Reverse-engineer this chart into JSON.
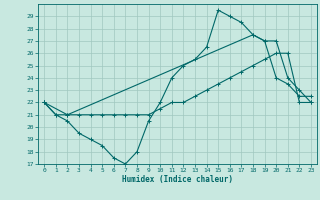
{
  "xlabel": "Humidex (Indice chaleur)",
  "bg_color": "#c8e8e0",
  "grid_color": "#a0c8c0",
  "line_color": "#006868",
  "xlim": [
    -0.5,
    23.5
  ],
  "ylim": [
    17,
    30
  ],
  "yticks": [
    17,
    18,
    19,
    20,
    21,
    22,
    23,
    24,
    25,
    26,
    27,
    28,
    29
  ],
  "xticks": [
    0,
    1,
    2,
    3,
    4,
    5,
    6,
    7,
    8,
    9,
    10,
    11,
    12,
    13,
    14,
    15,
    16,
    17,
    18,
    19,
    20,
    21,
    22,
    23
  ],
  "series": {
    "line1_x": [
      0,
      1,
      2,
      3,
      4,
      5,
      6,
      7,
      8,
      9,
      10,
      11,
      12,
      13,
      14,
      15,
      16,
      17,
      18,
      19,
      20,
      21,
      22,
      23
    ],
    "line1_y": [
      22,
      21,
      20.5,
      19.5,
      19.0,
      18.5,
      17.5,
      17,
      18,
      20.5,
      22,
      24,
      25,
      25.5,
      26.5,
      29.5,
      29,
      28.5,
      27.5,
      27,
      24,
      23.5,
      22.5,
      22.5
    ],
    "line2_x": [
      0,
      1,
      2,
      3,
      4,
      5,
      6,
      7,
      8,
      9,
      10,
      11,
      12,
      13,
      14,
      15,
      16,
      17,
      18,
      19,
      20,
      21,
      22,
      23
    ],
    "line2_y": [
      22,
      21,
      21,
      21,
      21,
      21,
      21,
      21,
      21,
      21,
      21.5,
      22,
      22,
      22.5,
      23,
      23.5,
      24,
      24.5,
      25,
      25.5,
      26,
      26,
      22,
      22
    ],
    "line3_x": [
      0,
      2,
      18,
      19,
      20,
      21,
      22,
      23
    ],
    "line3_y": [
      22,
      21,
      27.5,
      27,
      27,
      24,
      23,
      22
    ]
  }
}
